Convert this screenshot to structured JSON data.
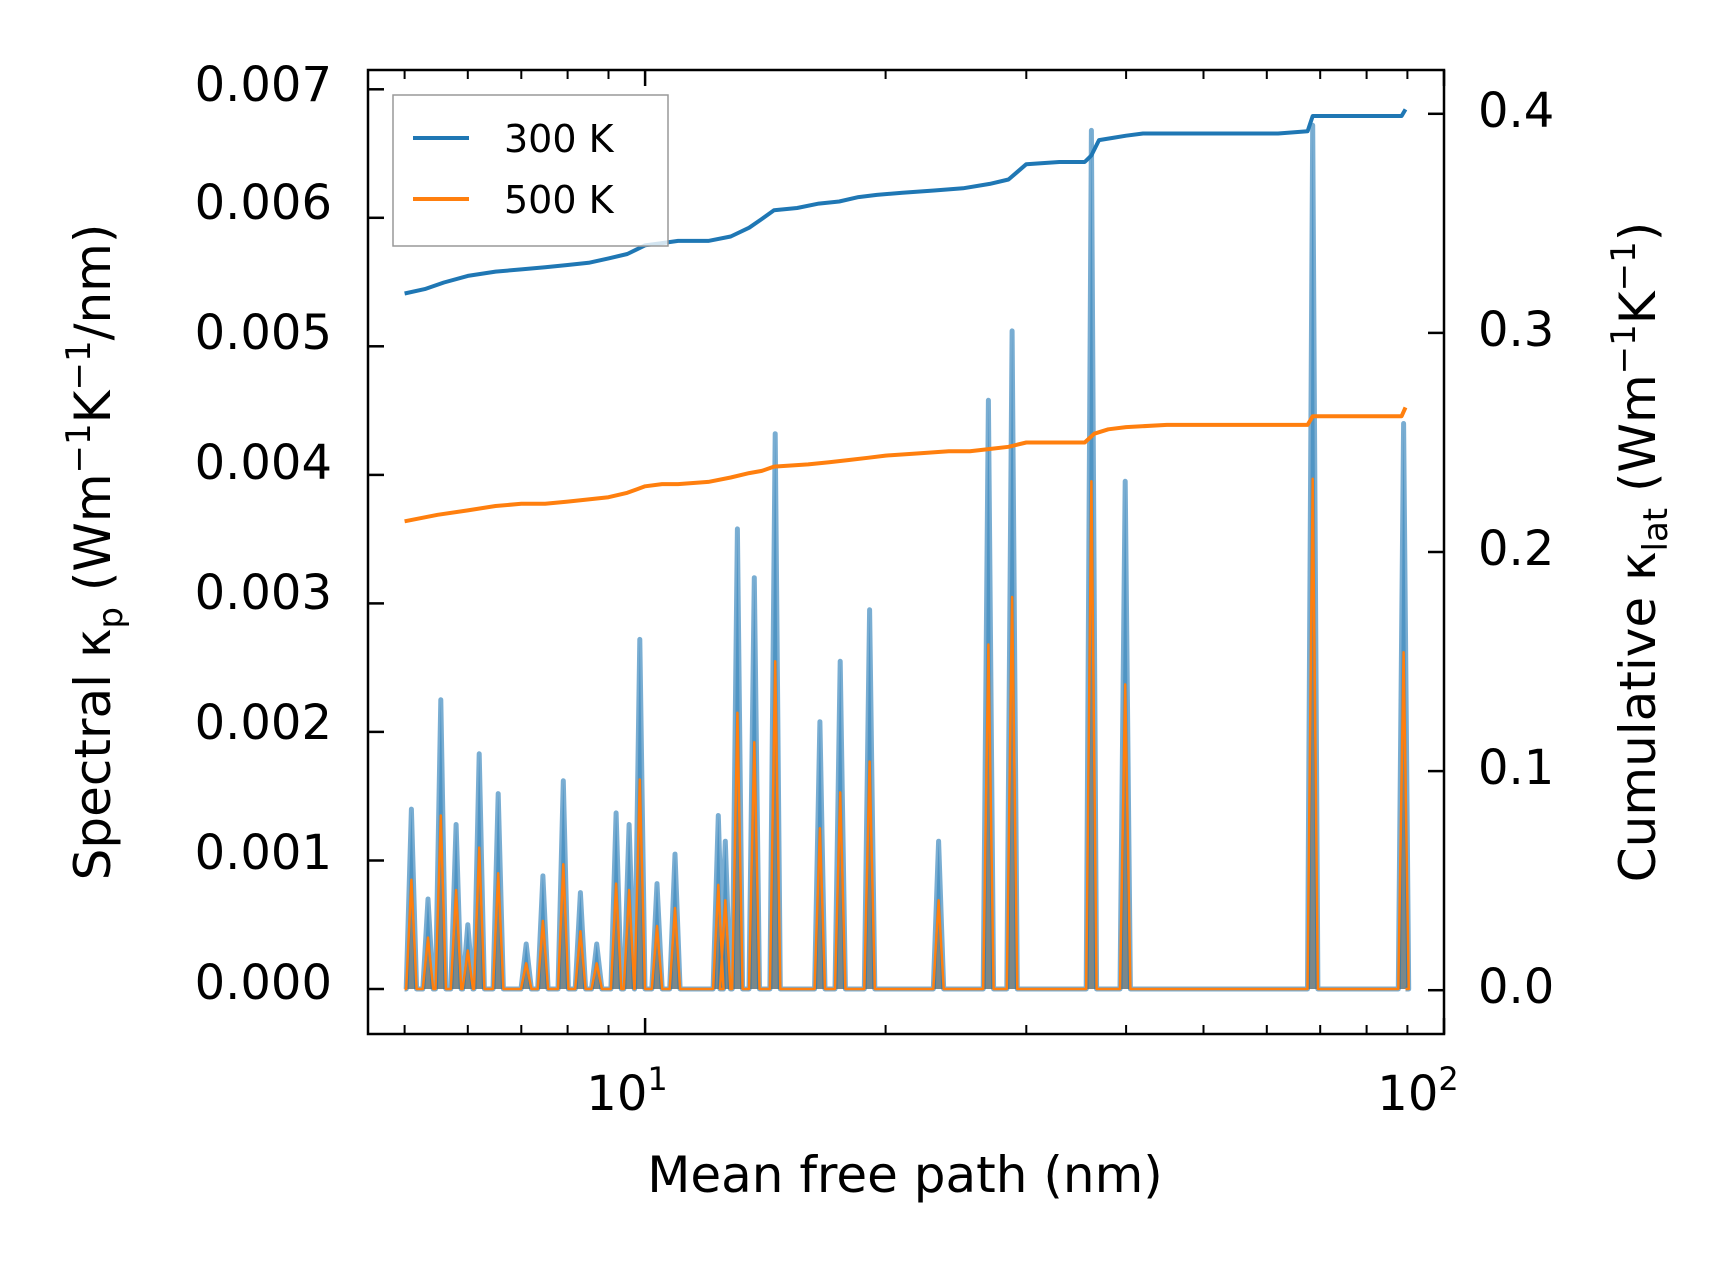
{
  "colors": {
    "s300": "#1f77b4",
    "s500": "#ff7f0e",
    "fill500": "#c69668"
  },
  "chart_data": {
    "type": "line",
    "title": "",
    "xlabel": "Mean free path (nm)",
    "ylabel_left": {
      "main": "Spectral κ",
      "sub": "p",
      "units_pre": " (Wm",
      "sup1": "−1",
      "mid": "K",
      "sup2": "−1",
      "units_post": "/nm)"
    },
    "ylabel_right": {
      "main": "Cumulative κ",
      "sub": "lat",
      "units_pre": " (Wm",
      "sup1": "−1",
      "mid": "K",
      "sup2": "−1",
      "units_post": ")"
    },
    "xscale": "log",
    "xlim": [
      4.5,
      100
    ],
    "ylim_left": [
      -0.00035,
      0.00715
    ],
    "ylim_right": [
      -0.02,
      0.42
    ],
    "x_ticks": [
      {
        "value": 10,
        "base": "10",
        "exp": "1"
      },
      {
        "value": 100,
        "base": "10",
        "exp": "2"
      }
    ],
    "y_left_ticks": [
      {
        "value": 0.0,
        "label": "0.000"
      },
      {
        "value": 0.001,
        "label": "0.001"
      },
      {
        "value": 0.002,
        "label": "0.002"
      },
      {
        "value": 0.003,
        "label": "0.003"
      },
      {
        "value": 0.004,
        "label": "0.004"
      },
      {
        "value": 0.005,
        "label": "0.005"
      },
      {
        "value": 0.006,
        "label": "0.006"
      },
      {
        "value": 0.007,
        "label": "0.007"
      }
    ],
    "y_right_ticks": [
      {
        "value": 0.0,
        "label": "0.0"
      },
      {
        "value": 0.1,
        "label": "0.1"
      },
      {
        "value": 0.2,
        "label": "0.2"
      },
      {
        "value": 0.3,
        "label": "0.3"
      },
      {
        "value": 0.4,
        "label": "0.4"
      }
    ],
    "legend": {
      "position": "top-left",
      "entries": [
        "300 K",
        "500 K"
      ]
    },
    "spectral": {
      "peaks_300K": [
        [
          5.1,
          0.0014
        ],
        [
          5.35,
          0.0007
        ],
        [
          5.55,
          0.00225
        ],
        [
          5.8,
          0.00128
        ],
        [
          6.0,
          0.0005
        ],
        [
          6.2,
          0.00183
        ],
        [
          6.55,
          0.00152
        ],
        [
          7.1,
          0.00035
        ],
        [
          7.45,
          0.00088
        ],
        [
          7.9,
          0.00162
        ],
        [
          8.3,
          0.00075
        ],
        [
          8.7,
          0.00035
        ],
        [
          9.2,
          0.00137
        ],
        [
          9.55,
          0.00128
        ],
        [
          9.85,
          0.00272
        ],
        [
          10.35,
          0.00082
        ],
        [
          10.9,
          0.00105
        ],
        [
          12.35,
          0.00135
        ],
        [
          12.6,
          0.00115
        ],
        [
          13.05,
          0.00358
        ],
        [
          13.7,
          0.0032
        ],
        [
          14.55,
          0.00432
        ],
        [
          16.55,
          0.00208
        ],
        [
          17.55,
          0.00255
        ],
        [
          19.1,
          0.00295
        ],
        [
          23.3,
          0.00115
        ],
        [
          26.9,
          0.00458
        ],
        [
          28.8,
          0.00512
        ],
        [
          36.2,
          0.00668
        ],
        [
          39.9,
          0.00395
        ],
        [
          68.5,
          0.00672
        ],
        [
          89.0,
          0.0044
        ]
      ],
      "peaks_500K": [
        [
          5.1,
          0.00085
        ],
        [
          5.35,
          0.0004
        ],
        [
          5.55,
          0.00135
        ],
        [
          5.8,
          0.00077
        ],
        [
          6.0,
          0.0003
        ],
        [
          6.2,
          0.0011
        ],
        [
          6.55,
          0.0009
        ],
        [
          7.1,
          0.0002
        ],
        [
          7.45,
          0.00053
        ],
        [
          7.9,
          0.00097
        ],
        [
          8.3,
          0.00045
        ],
        [
          8.7,
          0.0002
        ],
        [
          9.2,
          0.00082
        ],
        [
          9.55,
          0.00077
        ],
        [
          9.85,
          0.00163
        ],
        [
          10.35,
          0.00049
        ],
        [
          10.9,
          0.00063
        ],
        [
          12.35,
          0.00081
        ],
        [
          12.6,
          0.00069
        ],
        [
          13.05,
          0.00215
        ],
        [
          13.7,
          0.00192
        ],
        [
          14.55,
          0.00255
        ],
        [
          16.55,
          0.00125
        ],
        [
          17.55,
          0.00153
        ],
        [
          19.1,
          0.00177
        ],
        [
          23.3,
          0.00069
        ],
        [
          26.9,
          0.00268
        ],
        [
          28.8,
          0.00305
        ],
        [
          36.2,
          0.00395
        ],
        [
          39.9,
          0.00237
        ],
        [
          68.5,
          0.00397
        ],
        [
          89.0,
          0.00262
        ]
      ],
      "x_range": [
        5.0,
        89.5
      ]
    },
    "cumulative": {
      "300K": {
        "x": [
          5.0,
          5.3,
          5.6,
          6.0,
          6.5,
          7.0,
          7.5,
          8.0,
          8.5,
          9.0,
          9.5,
          10.0,
          10.5,
          11.0,
          12.0,
          12.8,
          13.5,
          14.0,
          14.5,
          15.5,
          16.5,
          17.5,
          18.5,
          19.5,
          21.0,
          23.0,
          25.0,
          27.0,
          28.5,
          30.0,
          33.0,
          35.5,
          36.2,
          37.0,
          38.5,
          40.0,
          42.0,
          48.0,
          55.0,
          62.0,
          67.5,
          68.5,
          69.0,
          75.0,
          80.0,
          86.0,
          88.5,
          89.5
        ],
        "y": [
          0.318,
          0.32,
          0.323,
          0.326,
          0.328,
          0.329,
          0.33,
          0.331,
          0.332,
          0.334,
          0.336,
          0.34,
          0.341,
          0.342,
          0.342,
          0.344,
          0.348,
          0.352,
          0.356,
          0.357,
          0.359,
          0.36,
          0.362,
          0.363,
          0.364,
          0.365,
          0.366,
          0.368,
          0.37,
          0.377,
          0.378,
          0.378,
          0.381,
          0.388,
          0.389,
          0.39,
          0.391,
          0.391,
          0.391,
          0.391,
          0.392,
          0.399,
          0.399,
          0.399,
          0.399,
          0.399,
          0.399,
          0.402
        ]
      },
      "500K": {
        "x": [
          5.0,
          5.5,
          6.0,
          6.5,
          7.0,
          7.5,
          8.0,
          8.5,
          9.0,
          9.5,
          10.0,
          10.5,
          11.0,
          12.0,
          12.8,
          13.5,
          14.0,
          14.5,
          16.0,
          17.0,
          18.0,
          19.0,
          20.0,
          22.0,
          24.0,
          25.5,
          27.0,
          28.5,
          30.0,
          33.0,
          35.5,
          36.5,
          38.0,
          40.0,
          45.0,
          55.0,
          65.0,
          67.5,
          68.5,
          69.0,
          75.0,
          80.0,
          86.0,
          88.5,
          89.5
        ],
        "y": [
          0.214,
          0.217,
          0.219,
          0.221,
          0.222,
          0.222,
          0.223,
          0.224,
          0.225,
          0.227,
          0.23,
          0.231,
          0.231,
          0.232,
          0.234,
          0.236,
          0.237,
          0.239,
          0.24,
          0.241,
          0.242,
          0.243,
          0.244,
          0.245,
          0.246,
          0.246,
          0.247,
          0.248,
          0.25,
          0.25,
          0.25,
          0.254,
          0.256,
          0.257,
          0.258,
          0.258,
          0.258,
          0.258,
          0.262,
          0.262,
          0.262,
          0.262,
          0.262,
          0.262,
          0.266
        ]
      }
    }
  }
}
